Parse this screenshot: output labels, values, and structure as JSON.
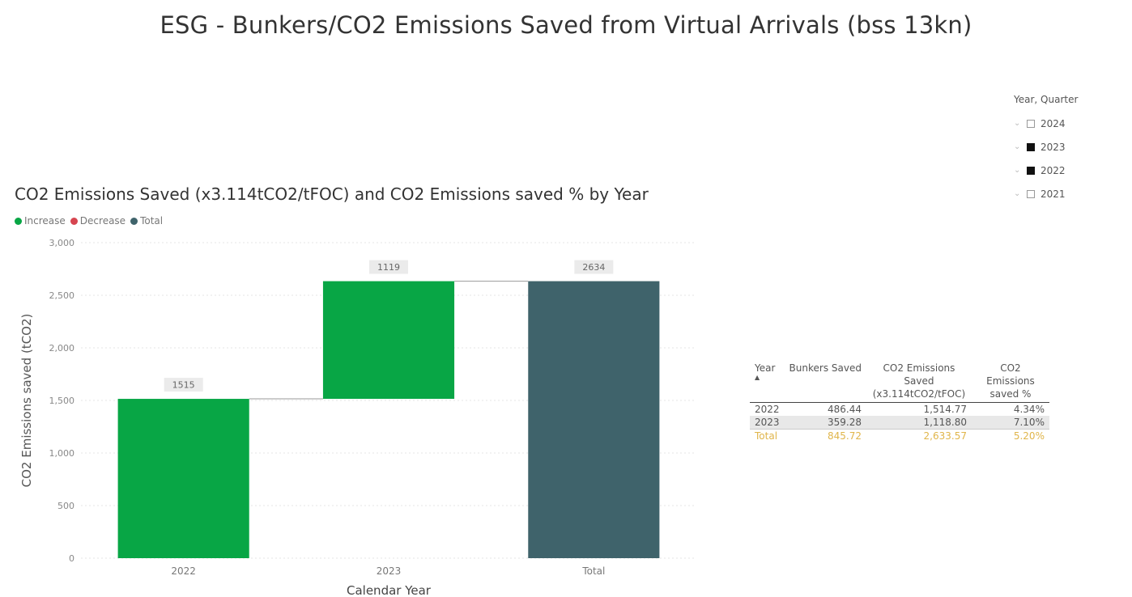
{
  "page_title": "ESG -  Bunkers/CO2 Emissions Saved from Virtual Arrivals (bss 13kn)",
  "colors": {
    "increase": "#08a645",
    "decrease": "#d64550",
    "total": "#3f636b",
    "grid": "#e6e6e6",
    "connector": "#999999",
    "total_text": "#e0b54a"
  },
  "chart_data": {
    "type": "bar",
    "subtype": "waterfall",
    "title": "CO2 Emissions Saved (x3.114tCO2/tFOC) and CO2 Emissions saved % by Year",
    "xlabel": "Calendar Year",
    "ylabel": "CO2 Emissions saved (tCO2)",
    "ylim": [
      0,
      3000
    ],
    "yticks": [
      0,
      500,
      1000,
      1500,
      2000,
      2500,
      3000
    ],
    "ytick_labels": [
      "0",
      "500",
      "1,000",
      "1,500",
      "2,000",
      "2,500",
      "3,000"
    ],
    "legend": [
      "Increase",
      "Decrease",
      "Total"
    ],
    "legend_position": "top-left",
    "grid": true,
    "categories": [
      "2022",
      "2023",
      "Total"
    ],
    "values": [
      1515,
      1119,
      2634
    ],
    "kinds": [
      "increase",
      "increase",
      "total"
    ],
    "data_labels": [
      "1515",
      "1119",
      "2634"
    ]
  },
  "slicer": {
    "title": "Year, Quarter",
    "items": [
      {
        "label": "2024",
        "checked": false
      },
      {
        "label": "2023",
        "checked": true
      },
      {
        "label": "2022",
        "checked": true
      },
      {
        "label": "2021",
        "checked": false
      }
    ]
  },
  "table": {
    "headers": [
      "Year",
      "Bunkers Saved",
      "CO2 Emissions Saved (x3.114tCO2/tFOC)",
      "CO2 Emissions saved %"
    ],
    "rows": [
      [
        "2022",
        "486.44",
        "1,514.77",
        "4.34%"
      ],
      [
        "2023",
        "359.28",
        "1,118.80",
        "7.10%"
      ]
    ],
    "total": [
      "Total",
      "845.72",
      "2,633.57",
      "5.20%"
    ]
  }
}
